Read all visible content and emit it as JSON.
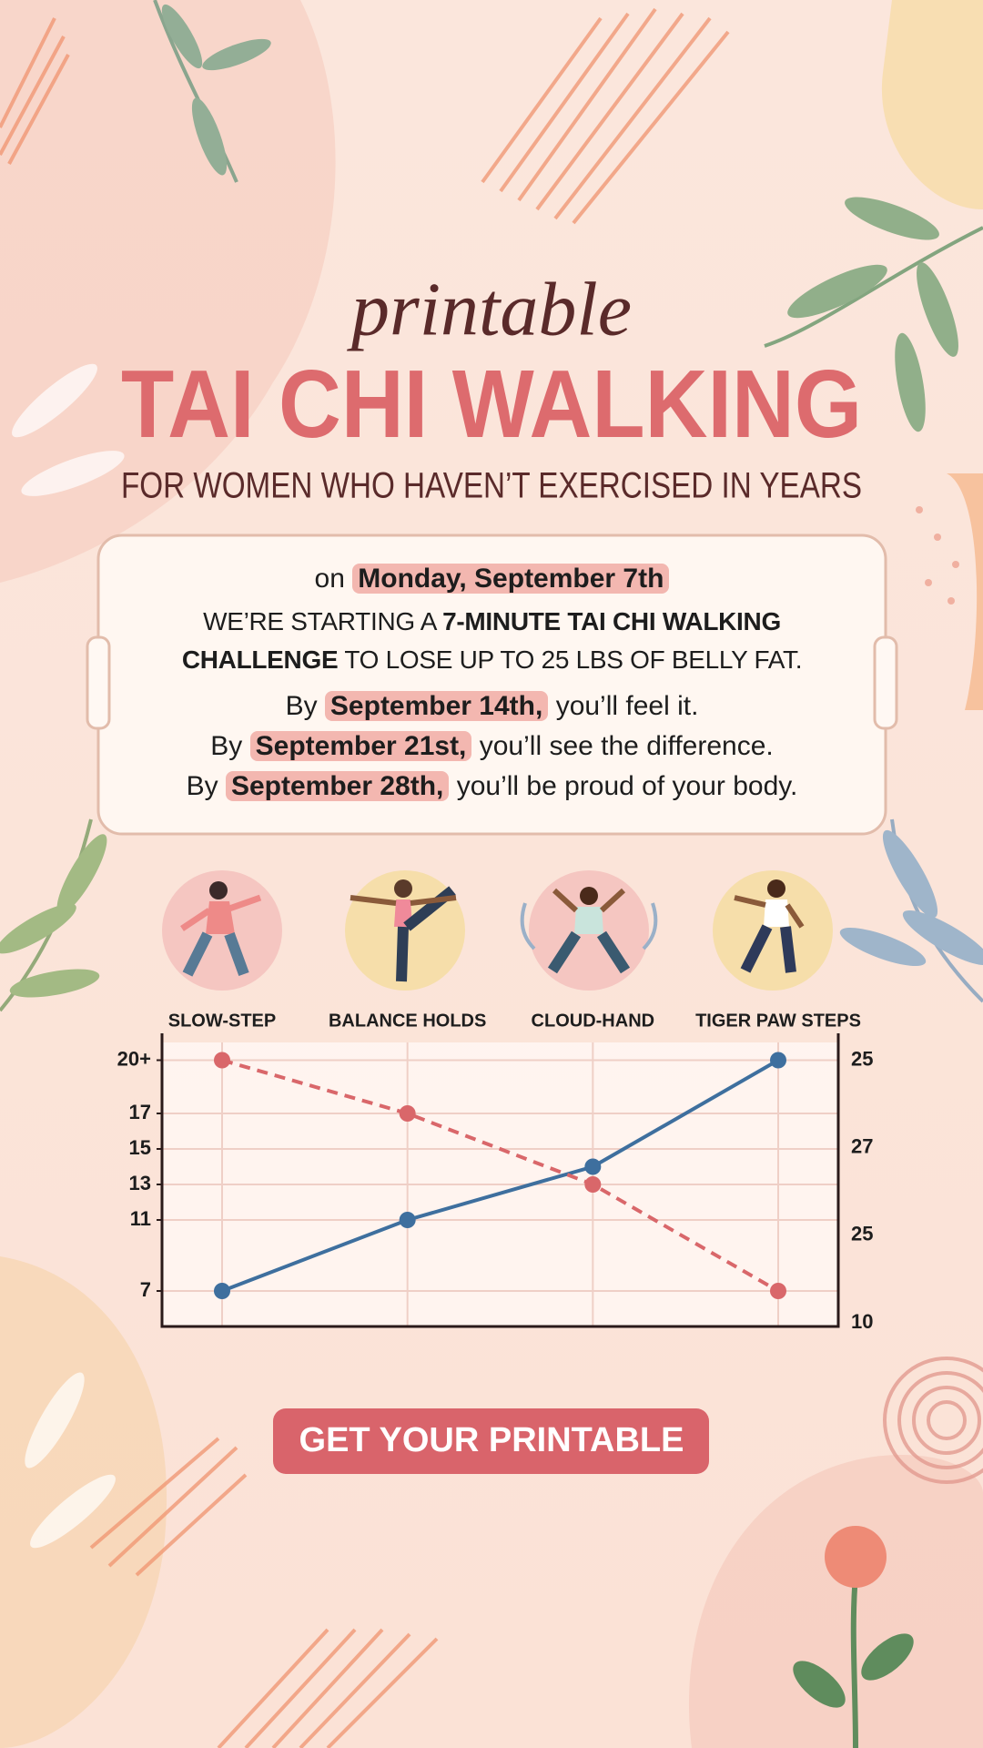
{
  "header": {
    "script": "printable",
    "title": "TAI CHI WALKING",
    "subtitle": "FOR WOMEN WHO HAVEN’T EXERCISED IN YEARS"
  },
  "announcement": {
    "start": {
      "lead": "on",
      "date": "Monday, September 7th"
    },
    "challenge": {
      "lead": "WE’RE STARTING A",
      "bold": "7-MINUTE TAI CHI WALKING CHALLENGE",
      "rest": "TO LOSE UP TO 25 LBS OF BELLY FAT."
    },
    "milestones": [
      {
        "lead": "By",
        "date": "September 14th,",
        "rest": "you’ll feel it."
      },
      {
        "lead": "By",
        "date": "September 21st,",
        "rest": "you’ll see the difference."
      },
      {
        "lead": "By",
        "date": "September 28th,",
        "rest": "you’ll be proud of your body."
      }
    ]
  },
  "chart_data": {
    "type": "line",
    "categories": [
      "SLOW-STEP",
      "BALANCE HOLDS",
      "CLOUD-HAND",
      "TIGER PAW STEPS"
    ],
    "series": [
      {
        "color": "#3e6f9e",
        "line_style": "solid",
        "values": [
          7,
          11,
          14,
          20
        ]
      },
      {
        "color": "#d9676a",
        "line_style": "dashed",
        "values": [
          20,
          17,
          13,
          7
        ]
      }
    ],
    "ylim": [
      5,
      21
    ],
    "yticks": [
      7,
      11,
      13,
      15,
      17,
      {
        "value": 20,
        "label": "20+"
      }
    ],
    "y2_labels": [
      "25",
      "27",
      "25",
      "10"
    ],
    "grid": true
  },
  "cta": {
    "label": "GET YOUR PRINTABLE"
  }
}
